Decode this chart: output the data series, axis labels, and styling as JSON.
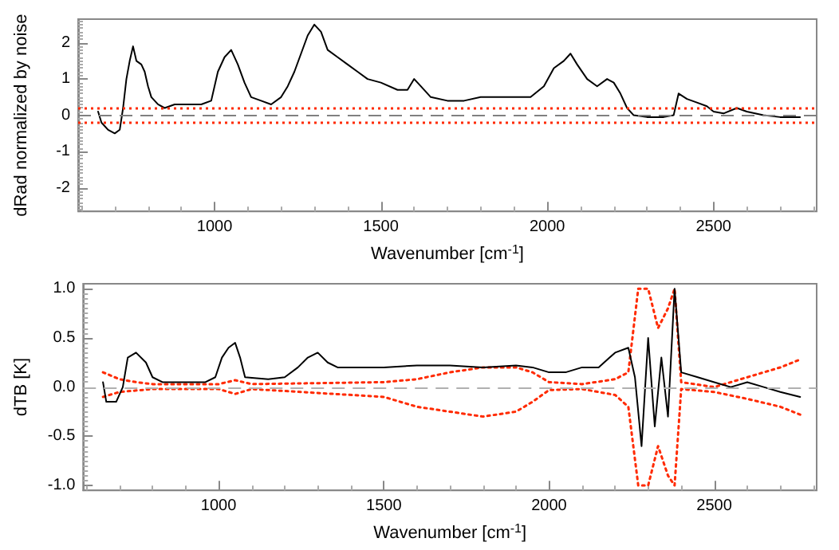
{
  "chart_data": [
    {
      "type": "line",
      "xlabel": "Wavenumber [cm$^{-1}$]",
      "ylabel": "dRad normalized by noise",
      "xlim": [
        590,
        2810
      ],
      "ylim": [
        -2.65,
        2.65
      ],
      "xticks": [
        1000,
        1500,
        2000,
        2500
      ],
      "yticks": [
        -2,
        -1,
        0,
        1,
        2
      ],
      "grid": false,
      "marker": "none",
      "series": [
        {
          "color": "#000000",
          "line_style": "solid",
          "x": [
            650,
            660,
            680,
            700,
            715,
            725,
            735,
            745,
            755,
            765,
            780,
            790,
            800,
            810,
            830,
            850,
            880,
            900,
            930,
            960,
            990,
            1010,
            1030,
            1050,
            1070,
            1090,
            1110,
            1140,
            1170,
            1200,
            1220,
            1240,
            1260,
            1280,
            1300,
            1320,
            1340,
            1370,
            1400,
            1430,
            1460,
            1500,
            1550,
            1580,
            1600,
            1620,
            1650,
            1700,
            1750,
            1800,
            1850,
            1900,
            1950,
            1990,
            2020,
            2050,
            2070,
            2090,
            2120,
            2150,
            2180,
            2200,
            2220,
            2240,
            2260,
            2300,
            2350,
            2380,
            2395,
            2420,
            2450,
            2480,
            2500,
            2530,
            2570,
            2600,
            2650,
            2700,
            2760
          ],
          "values": [
            0.1,
            -0.2,
            -0.4,
            -0.5,
            -0.4,
            0.2,
            1.0,
            1.5,
            1.9,
            1.5,
            1.4,
            1.2,
            0.8,
            0.5,
            0.3,
            0.2,
            0.3,
            0.3,
            0.3,
            0.3,
            0.4,
            1.2,
            1.6,
            1.8,
            1.4,
            0.9,
            0.5,
            0.4,
            0.3,
            0.5,
            0.8,
            1.2,
            1.7,
            2.2,
            2.5,
            2.3,
            1.8,
            1.6,
            1.4,
            1.2,
            1.0,
            0.9,
            0.7,
            0.7,
            1.0,
            0.8,
            0.5,
            0.4,
            0.4,
            0.5,
            0.5,
            0.5,
            0.5,
            0.8,
            1.3,
            1.5,
            1.7,
            1.4,
            1.0,
            0.8,
            1.0,
            0.9,
            0.6,
            0.2,
            0.0,
            -0.05,
            -0.05,
            0.0,
            0.6,
            0.45,
            0.35,
            0.25,
            0.1,
            0.05,
            0.2,
            0.1,
            0.0,
            -0.05,
            -0.05
          ]
        }
      ],
      "ref_lines": [
        {
          "axis": "y",
          "value": 0,
          "color": "#808080",
          "line_style": "dashed"
        },
        {
          "axis": "y",
          "value": 0.2,
          "color": "#ff2a00",
          "line_style": "dotted"
        },
        {
          "axis": "y",
          "value": -0.2,
          "color": "#ff2a00",
          "line_style": "dotted"
        }
      ]
    },
    {
      "type": "line",
      "xlabel": "Wavenumber [cm$^{-1}$]",
      "ylabel": "dTB [K]",
      "xlim": [
        590,
        2810
      ],
      "ylim": [
        -1.05,
        1.05
      ],
      "xticks": [
        1000,
        1500,
        2000,
        2500
      ],
      "yticks": [
        {
          "value": -1,
          "label": "-1.0"
        },
        {
          "value": -0.5,
          "label": "-0.5"
        },
        {
          "value": 0,
          "label": "0.0"
        },
        {
          "value": 0.5,
          "label": "0.5"
        },
        {
          "value": 1,
          "label": "1.0"
        }
      ],
      "grid": false,
      "marker": "none",
      "series": [
        {
          "color": "#ff2a00",
          "line_style": "dotted",
          "x": [
            650,
            700,
            750,
            800,
            1000,
            1050,
            1100,
            1500,
            1600,
            1700,
            1800,
            1900,
            1950,
            2000,
            2100,
            2200,
            2240,
            2270,
            2300,
            2330,
            2360,
            2380,
            2400,
            2500,
            2600,
            2700,
            2760
          ],
          "values": [
            0.15,
            0.08,
            0.05,
            0.03,
            0.03,
            0.07,
            0.03,
            0.05,
            0.08,
            0.15,
            0.2,
            0.2,
            0.15,
            0.05,
            0.03,
            0.08,
            0.15,
            1.0,
            1.0,
            0.6,
            0.8,
            1.0,
            0.05,
            0.0,
            0.1,
            0.2,
            0.28
          ]
        },
        {
          "color": "#ff2a00",
          "line_style": "dotted",
          "x": [
            650,
            700,
            800,
            1000,
            1050,
            1100,
            1500,
            1600,
            1700,
            1800,
            1900,
            1950,
            2000,
            2100,
            2200,
            2240,
            2270,
            2300,
            2330,
            2360,
            2380,
            2400,
            2500,
            2600,
            2700,
            2760
          ],
          "values": [
            -0.1,
            -0.05,
            -0.02,
            -0.02,
            -0.07,
            -0.02,
            -0.1,
            -0.2,
            -0.25,
            -0.3,
            -0.25,
            -0.15,
            -0.03,
            -0.02,
            -0.08,
            -0.2,
            -1.0,
            -1.0,
            -0.6,
            -0.9,
            -1.0,
            -0.02,
            -0.05,
            -0.12,
            -0.2,
            -0.28
          ]
        },
        {
          "color": "#000000",
          "line_style": "solid",
          "x": [
            650,
            660,
            690,
            710,
            725,
            750,
            780,
            800,
            830,
            900,
            960,
            990,
            1010,
            1030,
            1050,
            1065,
            1080,
            1150,
            1200,
            1240,
            1270,
            1300,
            1330,
            1360,
            1400,
            1500,
            1600,
            1700,
            1800,
            1900,
            1950,
            2000,
            2050,
            2100,
            2150,
            2200,
            2240,
            2260,
            2280,
            2300,
            2320,
            2340,
            2360,
            2380,
            2400,
            2450,
            2500,
            2550,
            2600,
            2650,
            2700,
            2760
          ],
          "values": [
            0.05,
            -0.15,
            -0.15,
            0.0,
            0.3,
            0.35,
            0.25,
            0.1,
            0.05,
            0.05,
            0.05,
            0.1,
            0.3,
            0.4,
            0.45,
            0.3,
            0.1,
            0.08,
            0.1,
            0.2,
            0.3,
            0.35,
            0.25,
            0.2,
            0.2,
            0.2,
            0.22,
            0.22,
            0.2,
            0.22,
            0.2,
            0.15,
            0.15,
            0.2,
            0.2,
            0.35,
            0.4,
            0.1,
            -0.6,
            0.5,
            -0.4,
            0.3,
            -0.3,
            1.0,
            0.15,
            0.1,
            0.05,
            0.0,
            0.05,
            0.0,
            -0.05,
            -0.1
          ]
        }
      ],
      "ref_lines": [
        {
          "axis": "y",
          "value": 0,
          "color": "#b0b0b0",
          "line_style": "dashed"
        }
      ]
    }
  ]
}
